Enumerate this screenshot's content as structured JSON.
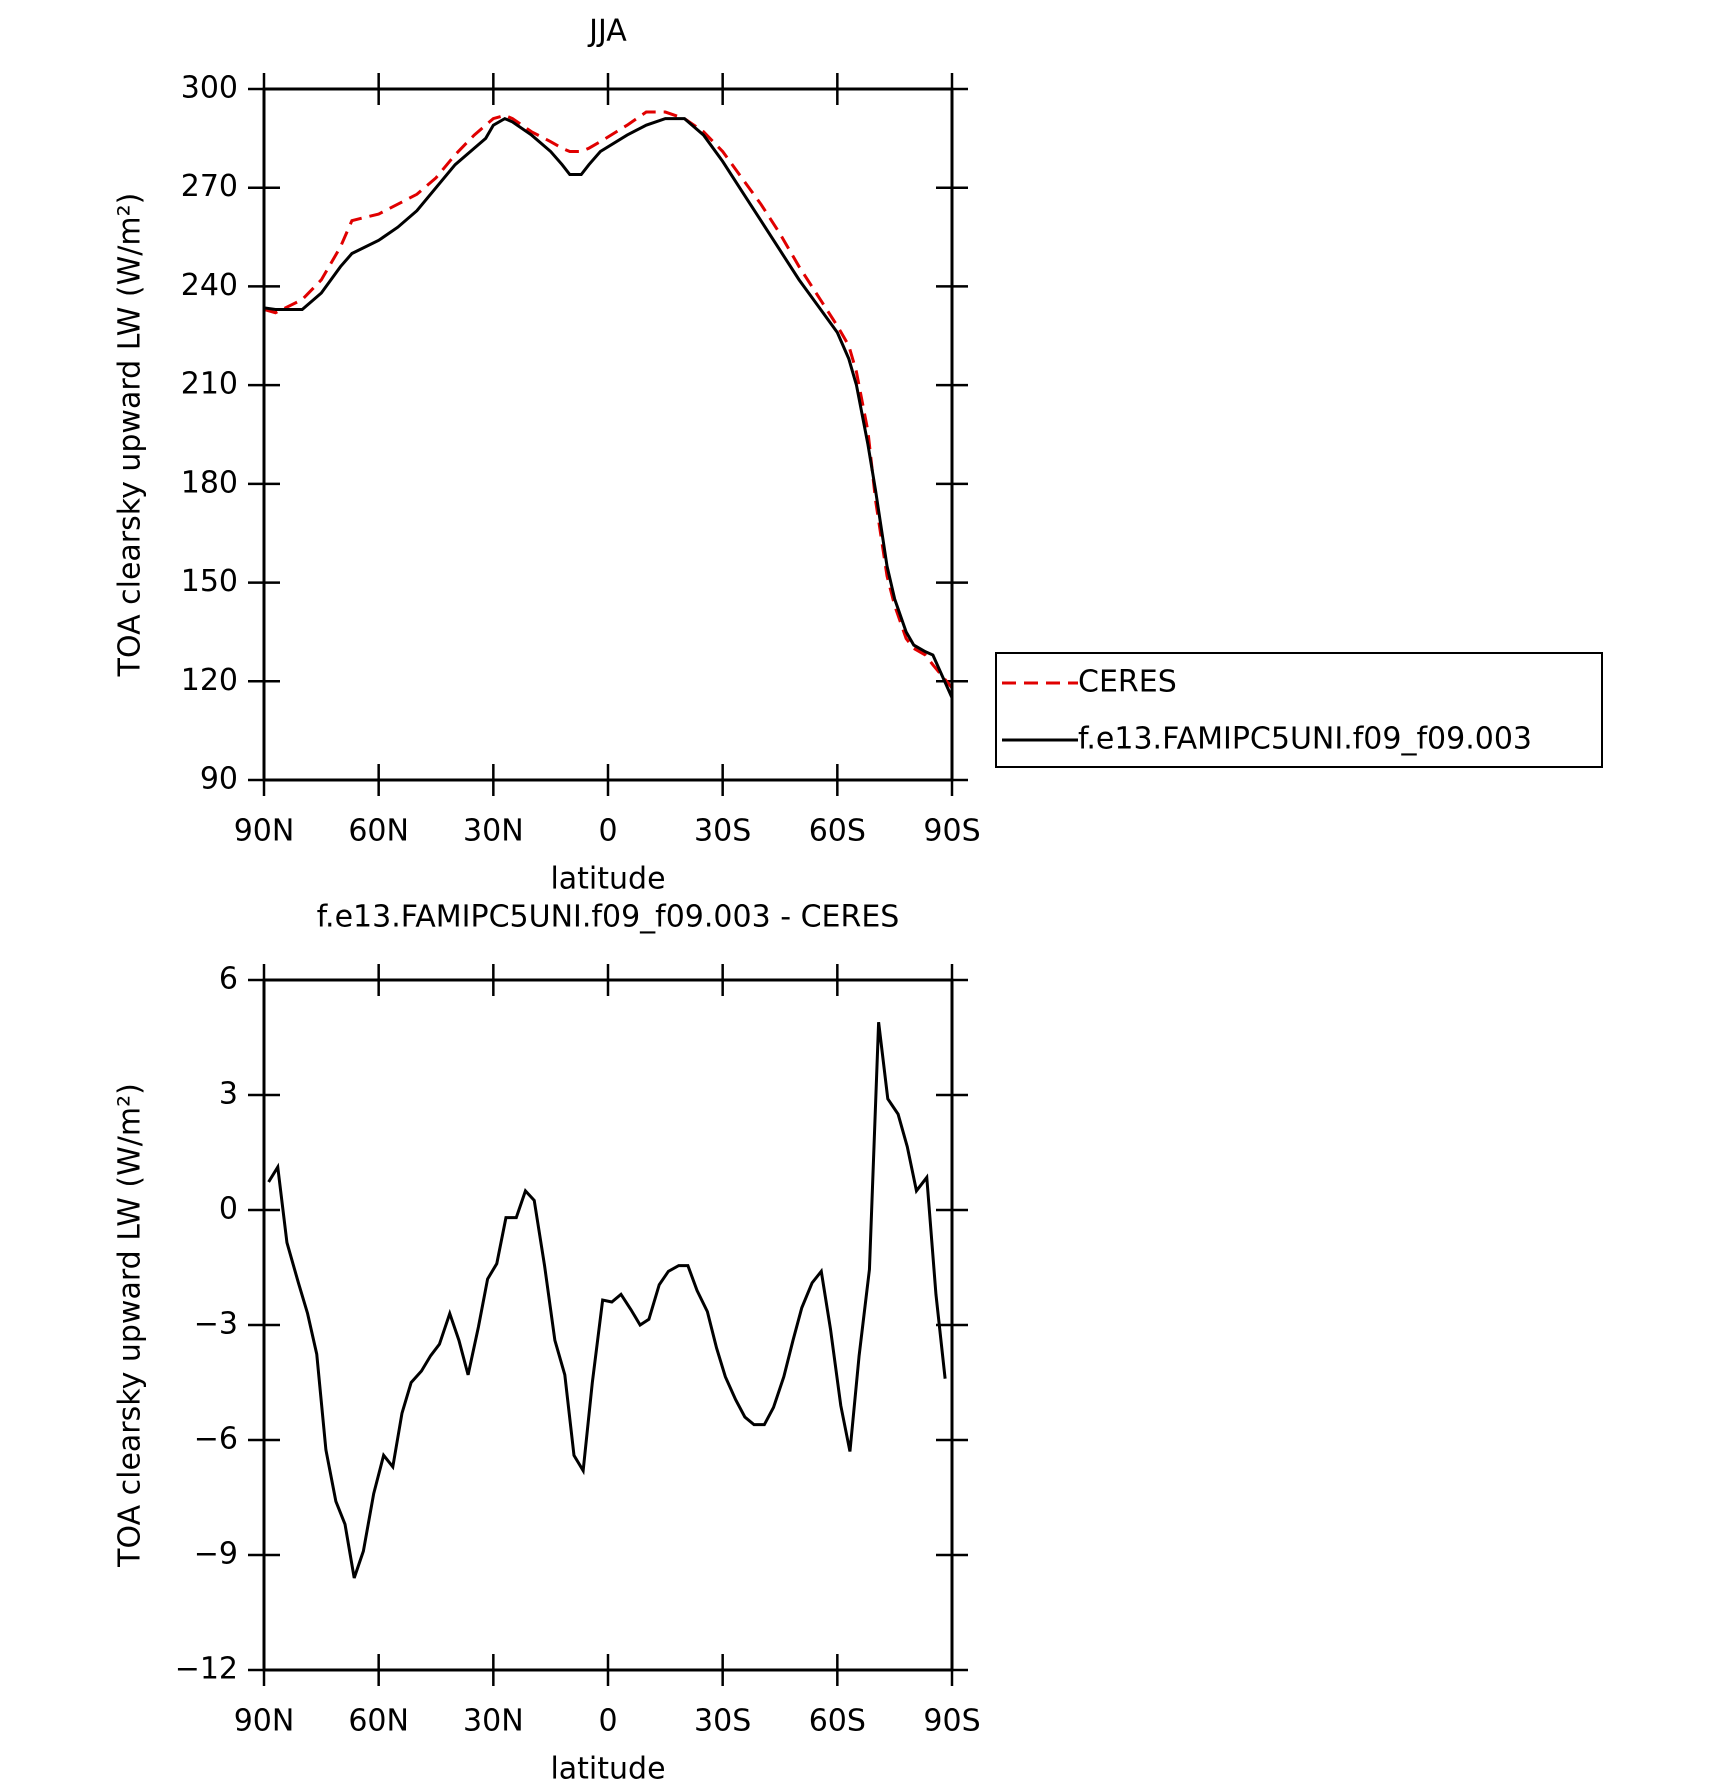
{
  "chart_data": [
    {
      "type": "line",
      "title": "JJA",
      "y_label": "TOA clearsky upward LW (W/m²)",
      "x_label": "latitude",
      "xlim": [
        90,
        -90
      ],
      "xticks": [
        {
          "value": 90,
          "label": "90N"
        },
        {
          "value": 60,
          "label": "60N"
        },
        {
          "value": 30,
          "label": "30N"
        },
        0,
        {
          "value": -30,
          "label": "30S"
        },
        {
          "value": -60,
          "label": "60S"
        },
        {
          "value": -90,
          "label": "90S"
        }
      ],
      "ylim": [
        90,
        300
      ],
      "yticks": [
        90,
        120,
        150,
        180,
        210,
        240,
        270,
        300
      ],
      "legend": "right",
      "x": [
        90,
        87,
        80,
        75,
        70,
        67,
        60,
        55,
        50,
        45,
        40,
        35,
        32,
        30,
        27,
        25,
        20,
        15,
        12,
        10,
        7,
        5,
        2,
        -5,
        -10,
        -15,
        -20,
        -25,
        -30,
        -35,
        -40,
        -45,
        -50,
        -55,
        -60,
        -63,
        -65,
        -68,
        -70,
        -73,
        -75,
        -78,
        -80,
        -83,
        -85,
        -90
      ],
      "series": [
        {
          "name": "CERES",
          "color": "#e00000",
          "linestyle": "dashed",
          "values": [
            233,
            232,
            236,
            242,
            252,
            260,
            262,
            265,
            268,
            273,
            280,
            286,
            289,
            291,
            292,
            291,
            287,
            284,
            282,
            281,
            281,
            282,
            284,
            289,
            293,
            293,
            291,
            287,
            281,
            273,
            265,
            256,
            246,
            237,
            228,
            222,
            214,
            196,
            175,
            152,
            143,
            133,
            130,
            128,
            125,
            118
          ]
        },
        {
          "name": "f.e13.FAMIPC5UNI.f09_f09.003",
          "color": "#000000",
          "linestyle": "solid",
          "values": [
            233.5,
            233,
            233,
            238,
            246,
            250,
            254,
            258,
            263,
            270,
            277,
            282,
            285,
            289,
            291,
            290,
            286,
            281,
            277,
            274,
            274,
            277,
            281,
            286,
            289,
            291,
            291,
            286,
            278,
            269,
            260,
            251,
            242,
            234,
            226,
            218,
            210,
            192,
            178,
            155,
            145,
            135,
            131,
            129,
            128,
            115
          ]
        }
      ]
    },
    {
      "type": "line",
      "title": "f.e13.FAMIPC5UNI.f09_f09.003 - CERES",
      "y_label": "TOA clearsky upward LW (W/m²)",
      "x_label": "latitude",
      "xlim": [
        90,
        -90
      ],
      "xticks": [
        {
          "value": 90,
          "label": "90N"
        },
        {
          "value": 60,
          "label": "60N"
        },
        {
          "value": 30,
          "label": "30N"
        },
        0,
        {
          "value": -30,
          "label": "30S"
        },
        {
          "value": -60,
          "label": "60S"
        },
        {
          "value": -90,
          "label": "90S"
        }
      ],
      "ylim": [
        -12,
        6
      ],
      "yticks": [
        {
          "value": -12,
          "label": "−12"
        },
        {
          "value": -9,
          "label": "−9"
        },
        {
          "value": -6,
          "label": "−6"
        },
        {
          "value": -3,
          "label": "−3"
        },
        0,
        3,
        6
      ],
      "x": [
        88.8,
        86.4,
        84,
        81,
        78.6,
        76.2,
        73.8,
        71.2,
        68.8,
        66.4,
        64,
        61.3,
        58.7,
        56.3,
        53.9,
        51.5,
        48.8,
        46.4,
        44.1,
        41.4,
        39,
        36.6,
        33.9,
        31.5,
        29.1,
        26.7,
        24,
        21.6,
        19.3,
        16.6,
        13.9,
        11.3,
        8.9,
        6.5,
        4.1,
        1.4,
        -1,
        -3.4,
        -6,
        -8.4,
        -10.7,
        -13.4,
        -15.8,
        -18.5,
        -20.9,
        -23.3,
        -26,
        -28.4,
        -30.7,
        -33.4,
        -35.8,
        -38.2,
        -40.9,
        -43.3,
        -46,
        -48.4,
        -50.7,
        -53.4,
        -55.8,
        -58.2,
        -60.9,
        -63.3,
        -65.7,
        -68.4,
        -70.8,
        -73.2,
        -75.9,
        -78.3,
        -80.7,
        -83.4,
        -85.8,
        -88.2
      ],
      "series": [
        {
          "color": "#000000",
          "linestyle": "solid",
          "values": [
            0.73,
            1.12,
            -0.85,
            -1.9,
            -2.7,
            -3.76,
            -6.26,
            -7.6,
            -8.2,
            -9.6,
            -8.9,
            -7.4,
            -6.4,
            -6.7,
            -5.3,
            -4.5,
            -4.2,
            -3.8,
            -3.5,
            -2.7,
            -3.4,
            -4.3,
            -3.05,
            -1.8,
            -1.4,
            -0.2,
            -0.2,
            0.5,
            0.25,
            -1.45,
            -3.4,
            -4.3,
            -6.4,
            -6.8,
            -4.5,
            -2.35,
            -2.4,
            -2.2,
            -2.6,
            -3,
            -2.85,
            -1.95,
            -1.6,
            -1.45,
            -1.45,
            -2.1,
            -2.65,
            -3.6,
            -4.35,
            -4.95,
            -5.4,
            -5.6,
            -5.6,
            -5.15,
            -4.35,
            -3.4,
            -2.55,
            -1.9,
            -1.6,
            -3.1,
            -5.1,
            -6.3,
            -3.8,
            -1.55,
            4.9,
            2.9,
            2.5,
            1.65,
            0.5,
            0.85,
            -2.2,
            -4.4
          ]
        }
      ]
    }
  ]
}
